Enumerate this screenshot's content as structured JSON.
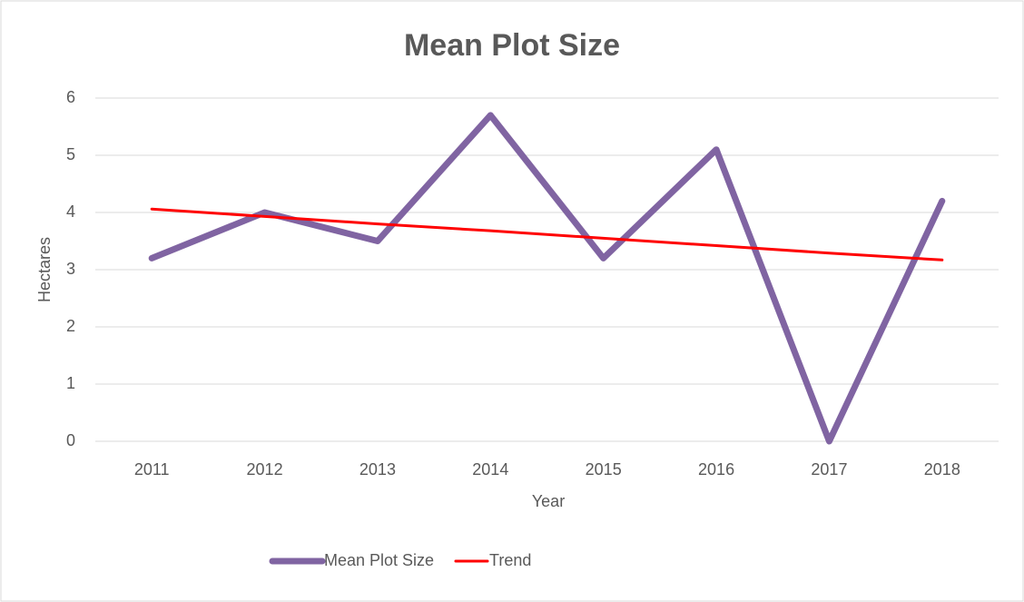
{
  "chart_data": {
    "type": "line",
    "title": "Mean Plot Size",
    "x_label": "Year",
    "y_label": "Hectares",
    "categories": [
      "2011",
      "2012",
      "2013",
      "2014",
      "2015",
      "2016",
      "2017",
      "2018"
    ],
    "series": [
      {
        "name": "Mean Plot Size",
        "color": "#8064a2",
        "values": [
          3.2,
          4.0,
          3.5,
          5.7,
          3.2,
          5.1,
          0,
          4.2
        ]
      },
      {
        "name": "Trend",
        "color": "#ff0000",
        "values": [
          4.06,
          3.93,
          3.8,
          3.68,
          3.55,
          3.42,
          3.29,
          3.17
        ]
      }
    ],
    "ylim": [
      0,
      6
    ],
    "yticks": [
      0,
      1,
      2,
      3,
      4,
      5,
      6
    ],
    "grid": true,
    "legend": "bottom"
  }
}
